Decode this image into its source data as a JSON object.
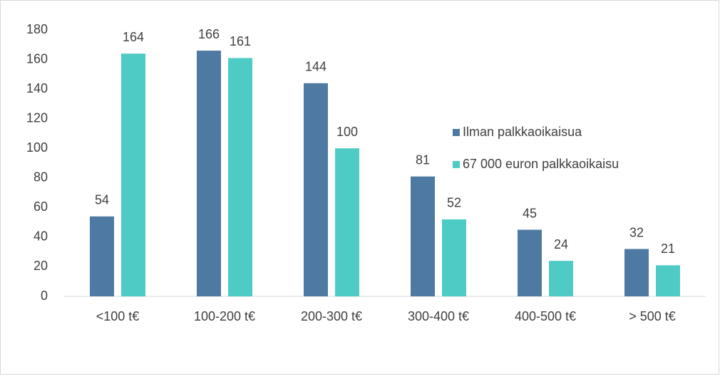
{
  "chart_data": {
    "type": "bar",
    "categories": [
      "<100 t€",
      "100-200 t€",
      "200-300 t€",
      "300-400 t€",
      "400-500 t€",
      "> 500 t€"
    ],
    "series": [
      {
        "name": "Ilman palkkaoikaisua",
        "color": "#4e79a2",
        "values": [
          54,
          166,
          144,
          81,
          45,
          32
        ]
      },
      {
        "name": "67 000 euron palkkaoikaisu",
        "color": "#4ecbc4",
        "values": [
          164,
          161,
          100,
          52,
          24,
          21
        ]
      }
    ],
    "ylim": [
      0,
      180
    ],
    "yticks": [
      0,
      20,
      40,
      60,
      80,
      100,
      120,
      140,
      160,
      180
    ],
    "grid": false,
    "legend": "right"
  }
}
